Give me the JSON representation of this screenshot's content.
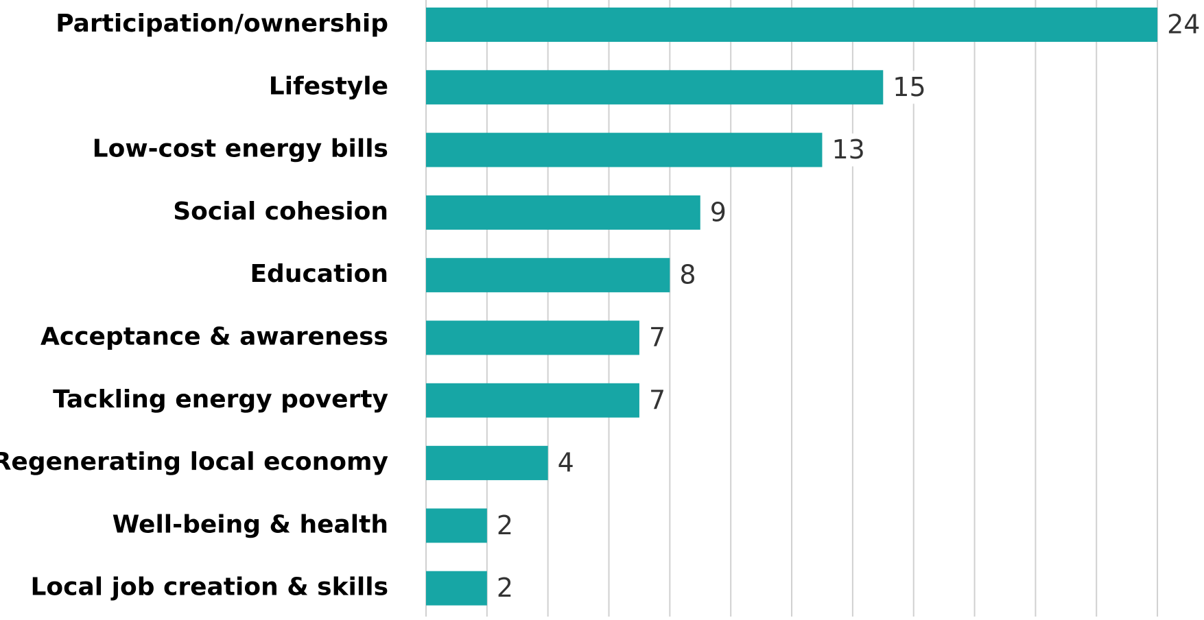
{
  "chart_data": {
    "type": "bar",
    "orientation": "horizontal",
    "categories": [
      "Participation/ownership",
      "Lifestyle",
      "Low-cost energy bills",
      "Social cohesion",
      "Education",
      "Acceptance & awareness",
      "Tackling energy poverty",
      "Regenerating local economy",
      "Well-being & health",
      "Local job creation & skills"
    ],
    "values": [
      24,
      15,
      13,
      9,
      8,
      7,
      7,
      4,
      2,
      2
    ],
    "xlim": [
      0,
      24
    ],
    "grid_step": 2,
    "grid": true,
    "bar_color": "#17a6a5",
    "label_color": "#000000",
    "value_label_color": "#333333",
    "gridline_color": "#d0d0d0"
  }
}
